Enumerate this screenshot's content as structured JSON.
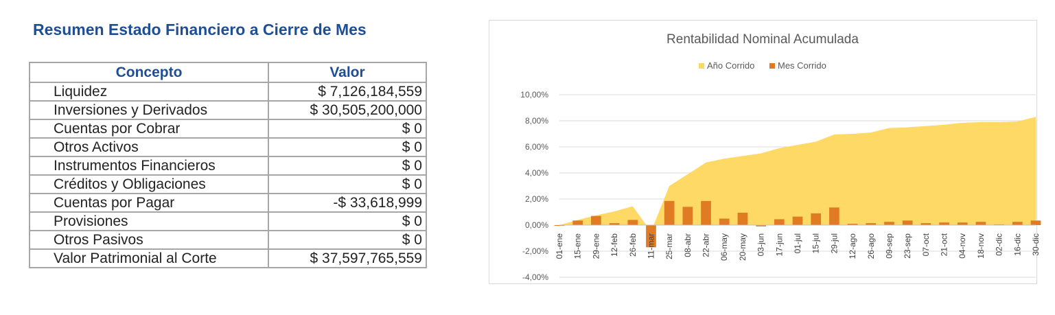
{
  "report": {
    "title": "Resumen Estado Financiero a Cierre de Mes",
    "headers": {
      "concept": "Concepto",
      "value": "Valor"
    },
    "rows": [
      {
        "concept": "Liquidez",
        "value": "$ 7,126,184,559"
      },
      {
        "concept": "Inversiones y Derivados",
        "value": "$ 30,505,200,000"
      },
      {
        "concept": "Cuentas por Cobrar",
        "value": "$ 0"
      },
      {
        "concept": "Otros Activos",
        "value": "$ 0"
      },
      {
        "concept": "Instrumentos Financieros",
        "value": "$ 0"
      },
      {
        "concept": "Créditos y Obligaciones",
        "value": "$ 0"
      },
      {
        "concept": "Cuentas por Pagar",
        "value": "-$ 33,618,999"
      },
      {
        "concept": "Provisiones",
        "value": "$ 0"
      },
      {
        "concept": "Otros Pasivos",
        "value": "$ 0"
      },
      {
        "concept": "Valor Patrimonial al Corte",
        "value": "$ 37,597,765,559"
      }
    ]
  },
  "chart_data": {
    "type": "area",
    "title": "Rentabilidad Nominal Acumulada",
    "xlabel": "",
    "ylabel": "",
    "ylim": [
      -4,
      10
    ],
    "yticks": [
      -4,
      -2,
      0,
      2,
      4,
      6,
      8,
      10
    ],
    "ytick_labels": [
      "-4,00%",
      "-2,00%",
      "0,00%",
      "2,00%",
      "4,00%",
      "6,00%",
      "8,00%",
      "10,00%"
    ],
    "grid": true,
    "legend_position": "top",
    "x": [
      "01-ene",
      "15-ene",
      "29-ene",
      "12-feb",
      "26-feb",
      "11-mar",
      "25-mar",
      "08-abr",
      "22-abr",
      "06-may",
      "20-may",
      "03-jun",
      "17-jun",
      "01-jul",
      "15-jul",
      "29-jul",
      "12-ago",
      "26-ago",
      "09-sep",
      "23-sep",
      "07-oct",
      "21-oct",
      "04-nov",
      "18-nov",
      "02-dic",
      "16-dic",
      "30-dic"
    ],
    "series": [
      {
        "name": "Año Corrido",
        "color": "#ffd966",
        "values": [
          0,
          0.4,
          0.75,
          1.05,
          1.45,
          -0.5,
          3.0,
          3.9,
          4.8,
          5.1,
          5.3,
          5.5,
          5.9,
          6.15,
          6.4,
          6.95,
          7.0,
          7.1,
          7.45,
          7.5,
          7.6,
          7.7,
          7.85,
          7.9,
          7.9,
          7.95,
          8.3
        ]
      },
      {
        "name": "Mes Corrido",
        "color": "#e07b24",
        "values": [
          0,
          0.35,
          0.7,
          0.15,
          0.4,
          -1.7,
          1.85,
          1.4,
          1.85,
          0.5,
          0.95,
          -0.1,
          0.45,
          0.65,
          0.9,
          1.35,
          0.1,
          0.15,
          0.25,
          0.35,
          0.15,
          0.2,
          0.2,
          0.25,
          0.05,
          0.25,
          0.35
        ]
      }
    ]
  }
}
